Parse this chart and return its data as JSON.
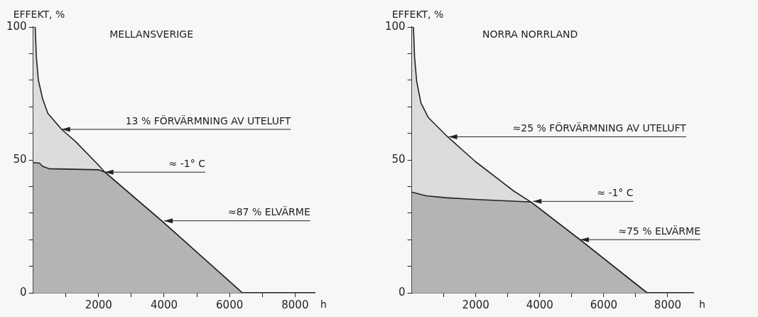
{
  "chart_data": [
    {
      "type": "area",
      "title": "MELLANSVERIGE",
      "xlabel": "h",
      "ylabel": "EFFEKT, %",
      "xlim": [
        0,
        8600
      ],
      "ylim": [
        0,
        100
      ],
      "xticks": [
        {
          "value": 1000,
          "label": null
        },
        2000,
        {
          "value": 3000,
          "label": null
        },
        4000,
        {
          "value": 5000,
          "label": null
        },
        6000,
        {
          "value": 7000,
          "label": null
        },
        8000
      ],
      "yticks": [
        0,
        {
          "value": 10,
          "label": null
        },
        {
          "value": 20,
          "label": null
        },
        {
          "value": 30,
          "label": null
        },
        {
          "value": 40,
          "label": null
        },
        50,
        {
          "value": 60,
          "label": null
        },
        {
          "value": 70,
          "label": null
        },
        {
          "value": 80,
          "label": null
        },
        {
          "value": 90,
          "label": null
        },
        100
      ],
      "grid": false,
      "legend": false,
      "series": [
        {
          "color": "#dcdcdc",
          "x": [
            0,
            65,
            97,
            160,
            290,
            450,
            870,
            1290,
            2000,
            2190,
            3935,
            6390
          ],
          "values": [
            100,
            100,
            89,
            80,
            73,
            67.5,
            61.5,
            57,
            48,
            45.4,
            27,
            0
          ]
        },
        {
          "color": "#b4b4b4",
          "x": [
            0,
            194,
            290,
            484,
            2000,
            2190,
            3935,
            6390
          ],
          "values": [
            49,
            48.8,
            47.6,
            46.7,
            46.3,
            45.4,
            27,
            0
          ]
        }
      ],
      "annotations": [
        {
          "text": "13 % FÖRVÄRMNING AV UTELUFT",
          "x": 870,
          "y": 61.5
        },
        {
          "text": "≈ -1° C",
          "x": 2190,
          "y": 45.4
        },
        {
          "text": "≈87 % ELVÄRME",
          "x": 4000,
          "y": 27.1
        }
      ]
    },
    {
      "type": "area",
      "title": "NORRA NORRLAND",
      "xlabel": "h",
      "ylabel": "EFFEKT, %",
      "xlim": [
        0,
        8800
      ],
      "ylim": [
        0,
        100
      ],
      "xticks": [
        {
          "value": 1000,
          "label": null
        },
        2000,
        {
          "value": 3000,
          "label": null
        },
        4000,
        {
          "value": 5000,
          "label": null
        },
        6000,
        {
          "value": 7000,
          "label": null
        },
        8000
      ],
      "yticks": [
        0,
        {
          "value": 10,
          "label": null
        },
        {
          "value": 20,
          "label": null
        },
        {
          "value": 30,
          "label": null
        },
        {
          "value": 40,
          "label": null
        },
        50,
        {
          "value": 60,
          "label": null
        },
        {
          "value": 70,
          "label": null
        },
        {
          "value": 80,
          "label": null
        },
        {
          "value": 90,
          "label": null
        },
        100
      ],
      "grid": false,
      "legend": false,
      "series": [
        {
          "color": "#dcdcdc",
          "x": [
            0,
            53,
            87,
            153,
            287,
            520,
            1120,
            1987,
            3187,
            3720,
            5253,
            7350
          ],
          "values": [
            100,
            100,
            88.8,
            79.6,
            71.4,
            65.9,
            58.7,
            49.4,
            38.3,
            34.2,
            20,
            0
          ]
        },
        {
          "color": "#b4b4b4",
          "x": [
            0,
            453,
            1053,
            2053,
            3520,
            3720,
            5253,
            7350
          ],
          "values": [
            37.9,
            36.5,
            35.8,
            35.1,
            34.3,
            34.2,
            20,
            0
          ]
        }
      ],
      "annotations": [
        {
          "text": "≈25 % FÖRVÄRMNING AV UTELUFT",
          "x": 1153,
          "y": 58.7
        },
        {
          "text": "≈ -1° C",
          "x": 3787,
          "y": 34.4
        },
        {
          "text": "≈75 % ELVÄRME",
          "x": 5267,
          "y": 20
        }
      ]
    }
  ]
}
